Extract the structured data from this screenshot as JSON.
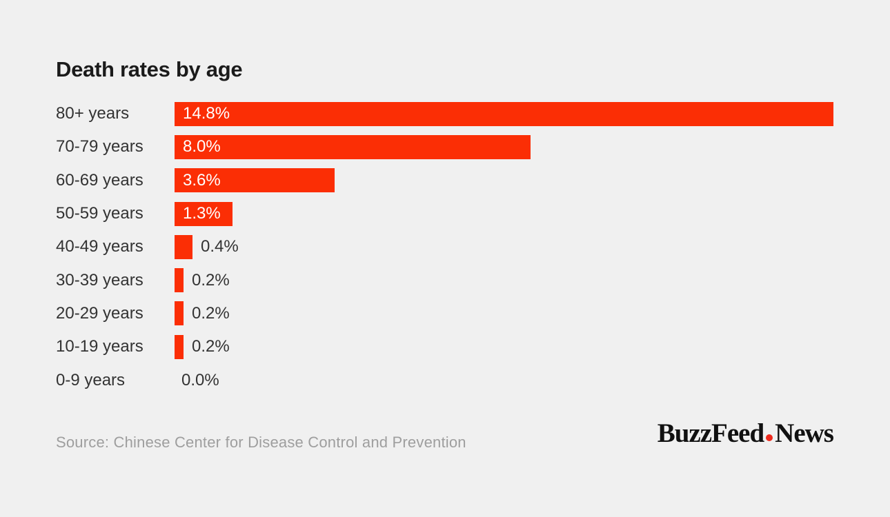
{
  "chart": {
    "background_color": "#f0f0f0",
    "bar_color": "#fb2e05",
    "value_inside_color": "#ffffff",
    "value_outside_color": "#333333",
    "title_color": "#1b1b1b"
  },
  "chart_data": {
    "type": "bar",
    "orientation": "horizontal",
    "title": "Death rates by age",
    "categories": [
      "80+ years",
      "70-79 years",
      "60-69 years",
      "50-59 years",
      "40-49 years",
      "30-39 years",
      "20-29 years",
      "10-19 years",
      "0-9 years"
    ],
    "values": [
      14.8,
      8.0,
      3.6,
      1.3,
      0.4,
      0.2,
      0.2,
      0.2,
      0.0
    ],
    "value_labels": [
      "14.8%",
      "8.0%",
      "3.6%",
      "1.3%",
      "0.4%",
      "0.2%",
      "0.2%",
      "0.2%",
      "0.0%"
    ],
    "xlabel": "",
    "ylabel": "",
    "xlim": [
      0,
      14.8
    ],
    "grid": false,
    "legend": false,
    "data_labels": true
  },
  "footer": {
    "source_label": "Source: Chinese Center for Disease Control and Prevention",
    "logo": {
      "part1": "BuzzFeed",
      "part2": "News",
      "dot_color": "#ee2a1d",
      "full_text": "BuzzFeed.News"
    }
  }
}
